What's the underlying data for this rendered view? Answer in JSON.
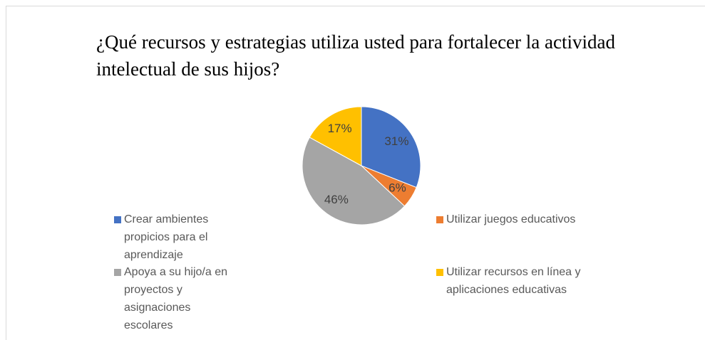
{
  "chart_data": {
    "type": "pie",
    "title": "¿Qué recursos y estrategias utiliza usted para fortalecer la actividad intelectual de sus hijos?",
    "categories": [
      "Crear ambientes propicios para el aprendizaje",
      "Utilizar juegos educativos",
      "Apoya a su hijo/a en proyectos y asignaciones escolares",
      "Utilizar recursos en línea y aplicaciones educativas"
    ],
    "values": [
      31,
      6,
      46,
      17
    ],
    "value_labels": [
      "31%",
      "6%",
      "46%",
      "17%"
    ],
    "colors": [
      "#4472c4",
      "#ed7d31",
      "#a5a5a5",
      "#ffc000"
    ],
    "legend": "bottom"
  }
}
